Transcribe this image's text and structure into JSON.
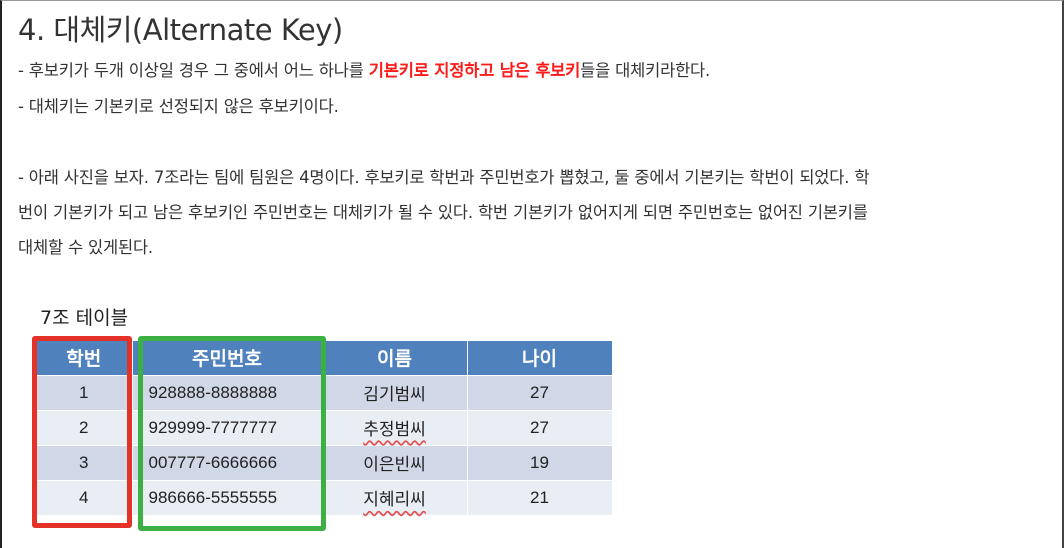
{
  "heading": "4. 대체키(Alternate Key)",
  "paragraph1": {
    "pre": "- 후보키가 두개 이상일 경우 그 중에서 어느 하나를 ",
    "highlight": "기본키로 지정하고 남은 후보키",
    "post": "들을 대체키라한다."
  },
  "paragraph2": "- 대체키는 기본키로 선정되지 않은 후보키이다.",
  "paragraph3": [
    "- 아래 사진을 보자. 7조라는 팀에 팀원은 4명이다. 후보키로 학번과 주민번호가 뽑혔고, 둘 중에서 기본키는 학번이 되었다. 학",
    "번이 기본키가 되고 남은 후보키인 주민번호는 대체키가 될 수 있다. 학번 기본키가 없어지게 되면 주민번호는 없어진 기본키를",
    "대체할 수 있게된다."
  ],
  "table": {
    "caption": "7조 테이블",
    "headers": [
      "학번",
      "주민번호",
      "이름",
      "나이"
    ],
    "rows": [
      [
        "1",
        "928888-8888888",
        "김기범씨",
        "27"
      ],
      [
        "2",
        "929999-7777777",
        "추정범씨",
        "27"
      ],
      [
        "3",
        "007777-6666666",
        "이은빈씨",
        "19"
      ],
      [
        "4",
        "986666-5555555",
        "지혜리씨",
        "21"
      ]
    ]
  },
  "colors": {
    "highlight": "#ff1a1a",
    "header_bg": "#4f81bd",
    "row_odd": "#d0d8e8",
    "row_even": "#e9edf4",
    "primary_key_box": "#e53228",
    "alternate_key_box": "#3cb043"
  }
}
